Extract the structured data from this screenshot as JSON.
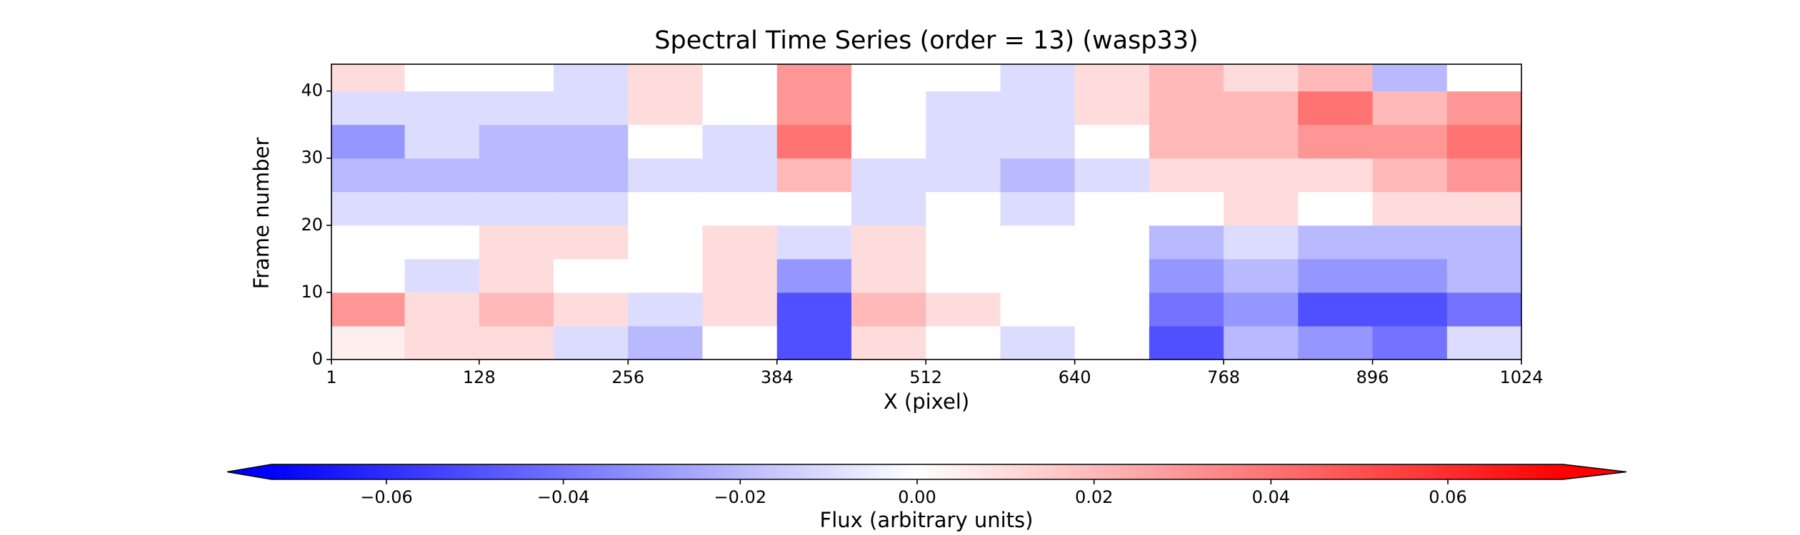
{
  "chart_data": {
    "type": "heatmap",
    "title": "Spectral Time Series (order = 13) (wasp33)",
    "x_label": "X (pixel)",
    "y_label": "Frame number",
    "colorbar_label": "Flux (arbitrary units)",
    "colormap": "bwr",
    "x_bins": [
      1,
      64,
      128,
      192,
      256,
      320,
      384,
      448,
      512,
      576,
      640,
      704,
      768,
      832,
      896,
      960,
      1024
    ],
    "y_bins": [
      0,
      5,
      10,
      15,
      20,
      25,
      30,
      35,
      40,
      44
    ],
    "values": [
      [
        0.005,
        0.01,
        0.01,
        -0.01,
        -0.02,
        0.0,
        -0.05,
        0.01,
        0.0,
        -0.01,
        0.0,
        -0.05,
        -0.02,
        -0.03,
        -0.04,
        -0.01
      ],
      [
        0.03,
        0.01,
        0.02,
        0.01,
        -0.01,
        0.01,
        -0.05,
        0.02,
        0.01,
        0.0,
        0.0,
        -0.04,
        -0.03,
        -0.05,
        -0.05,
        -0.04
      ],
      [
        0.0,
        -0.01,
        0.01,
        0.0,
        0.0,
        0.01,
        -0.03,
        0.01,
        0.0,
        0.0,
        0.0,
        -0.03,
        -0.02,
        -0.03,
        -0.03,
        -0.02
      ],
      [
        0.0,
        0.0,
        0.01,
        0.01,
        0.0,
        0.01,
        -0.01,
        0.01,
        0.0,
        0.0,
        0.0,
        -0.02,
        -0.01,
        -0.02,
        -0.02,
        -0.02
      ],
      [
        -0.01,
        -0.01,
        -0.01,
        -0.01,
        0.0,
        0.0,
        0.0,
        -0.01,
        0.0,
        -0.01,
        0.0,
        0.0,
        0.01,
        0.0,
        0.01,
        0.01
      ],
      [
        -0.02,
        -0.02,
        -0.02,
        -0.02,
        -0.01,
        -0.01,
        0.02,
        -0.01,
        -0.01,
        -0.02,
        -0.01,
        0.01,
        0.01,
        0.01,
        0.02,
        0.03
      ],
      [
        -0.03,
        -0.01,
        -0.02,
        -0.02,
        0.0,
        -0.01,
        0.04,
        0.0,
        -0.01,
        -0.01,
        0.0,
        0.02,
        0.02,
        0.03,
        0.03,
        0.04
      ],
      [
        -0.01,
        -0.01,
        -0.01,
        -0.01,
        0.01,
        0.0,
        0.03,
        0.0,
        -0.01,
        -0.01,
        0.01,
        0.02,
        0.02,
        0.04,
        0.02,
        0.03
      ],
      [
        0.01,
        0.0,
        0.0,
        -0.01,
        0.01,
        0.0,
        0.03,
        0.0,
        0.0,
        -0.01,
        0.01,
        0.02,
        0.01,
        0.02,
        -0.02,
        0.0
      ]
    ],
    "xlim": [
      1,
      1024
    ],
    "xticks": [
      1,
      128,
      256,
      384,
      512,
      640,
      768,
      896,
      1024
    ],
    "ylim": [
      0,
      44
    ],
    "yticks": [
      0,
      10,
      20,
      30,
      40
    ],
    "clim": [
      -0.073,
      0.073
    ],
    "cticks": [
      {
        "value": -0.06,
        "label": "−0.06"
      },
      {
        "value": -0.04,
        "label": "−0.04"
      },
      {
        "value": -0.02,
        "label": "−0.02"
      },
      {
        "value": 0,
        "label": "0.00"
      },
      {
        "value": 0.02,
        "label": "0.02"
      },
      {
        "value": 0.04,
        "label": "0.04"
      },
      {
        "value": 0.06,
        "label": "0.06"
      }
    ]
  }
}
